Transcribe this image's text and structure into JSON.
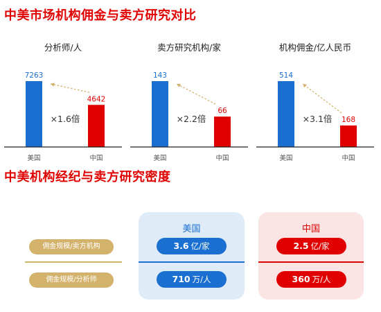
{
  "title_main": "中美市场机构佣金与卖方研究对比",
  "title_density": "中美机构经纪与卖方研究密度",
  "colors": {
    "us": "#1a6fd1",
    "cn": "#e00000",
    "gold": "#d3b26c",
    "arrow": "#d3b26c"
  },
  "chart_data": [
    {
      "type": "bar",
      "title": "分析师/人",
      "categories": [
        "美国",
        "中国"
      ],
      "values": [
        7263,
        4642
      ],
      "ratio_label": "×1.6倍"
    },
    {
      "type": "bar",
      "title": "卖方研究机构/家",
      "categories": [
        "美国",
        "中国"
      ],
      "values": [
        143,
        66
      ],
      "ratio_label": "×2.2倍"
    },
    {
      "type": "bar",
      "title": "机构佣金/亿人民币",
      "categories": [
        "美国",
        "中国"
      ],
      "values": [
        514,
        168
      ],
      "ratio_label": "×3.1倍"
    }
  ],
  "density": {
    "metric_labels": [
      "佣金规模/卖方机构",
      "佣金规模/分析师"
    ],
    "us": {
      "label": "美国",
      "v1": "3.6",
      "u1": "亿/家",
      "v2": "710",
      "u2": "万/人"
    },
    "cn": {
      "label": "中国",
      "v1": "2.5",
      "u1": "亿/家",
      "v2": "360",
      "u2": "万/人"
    }
  }
}
